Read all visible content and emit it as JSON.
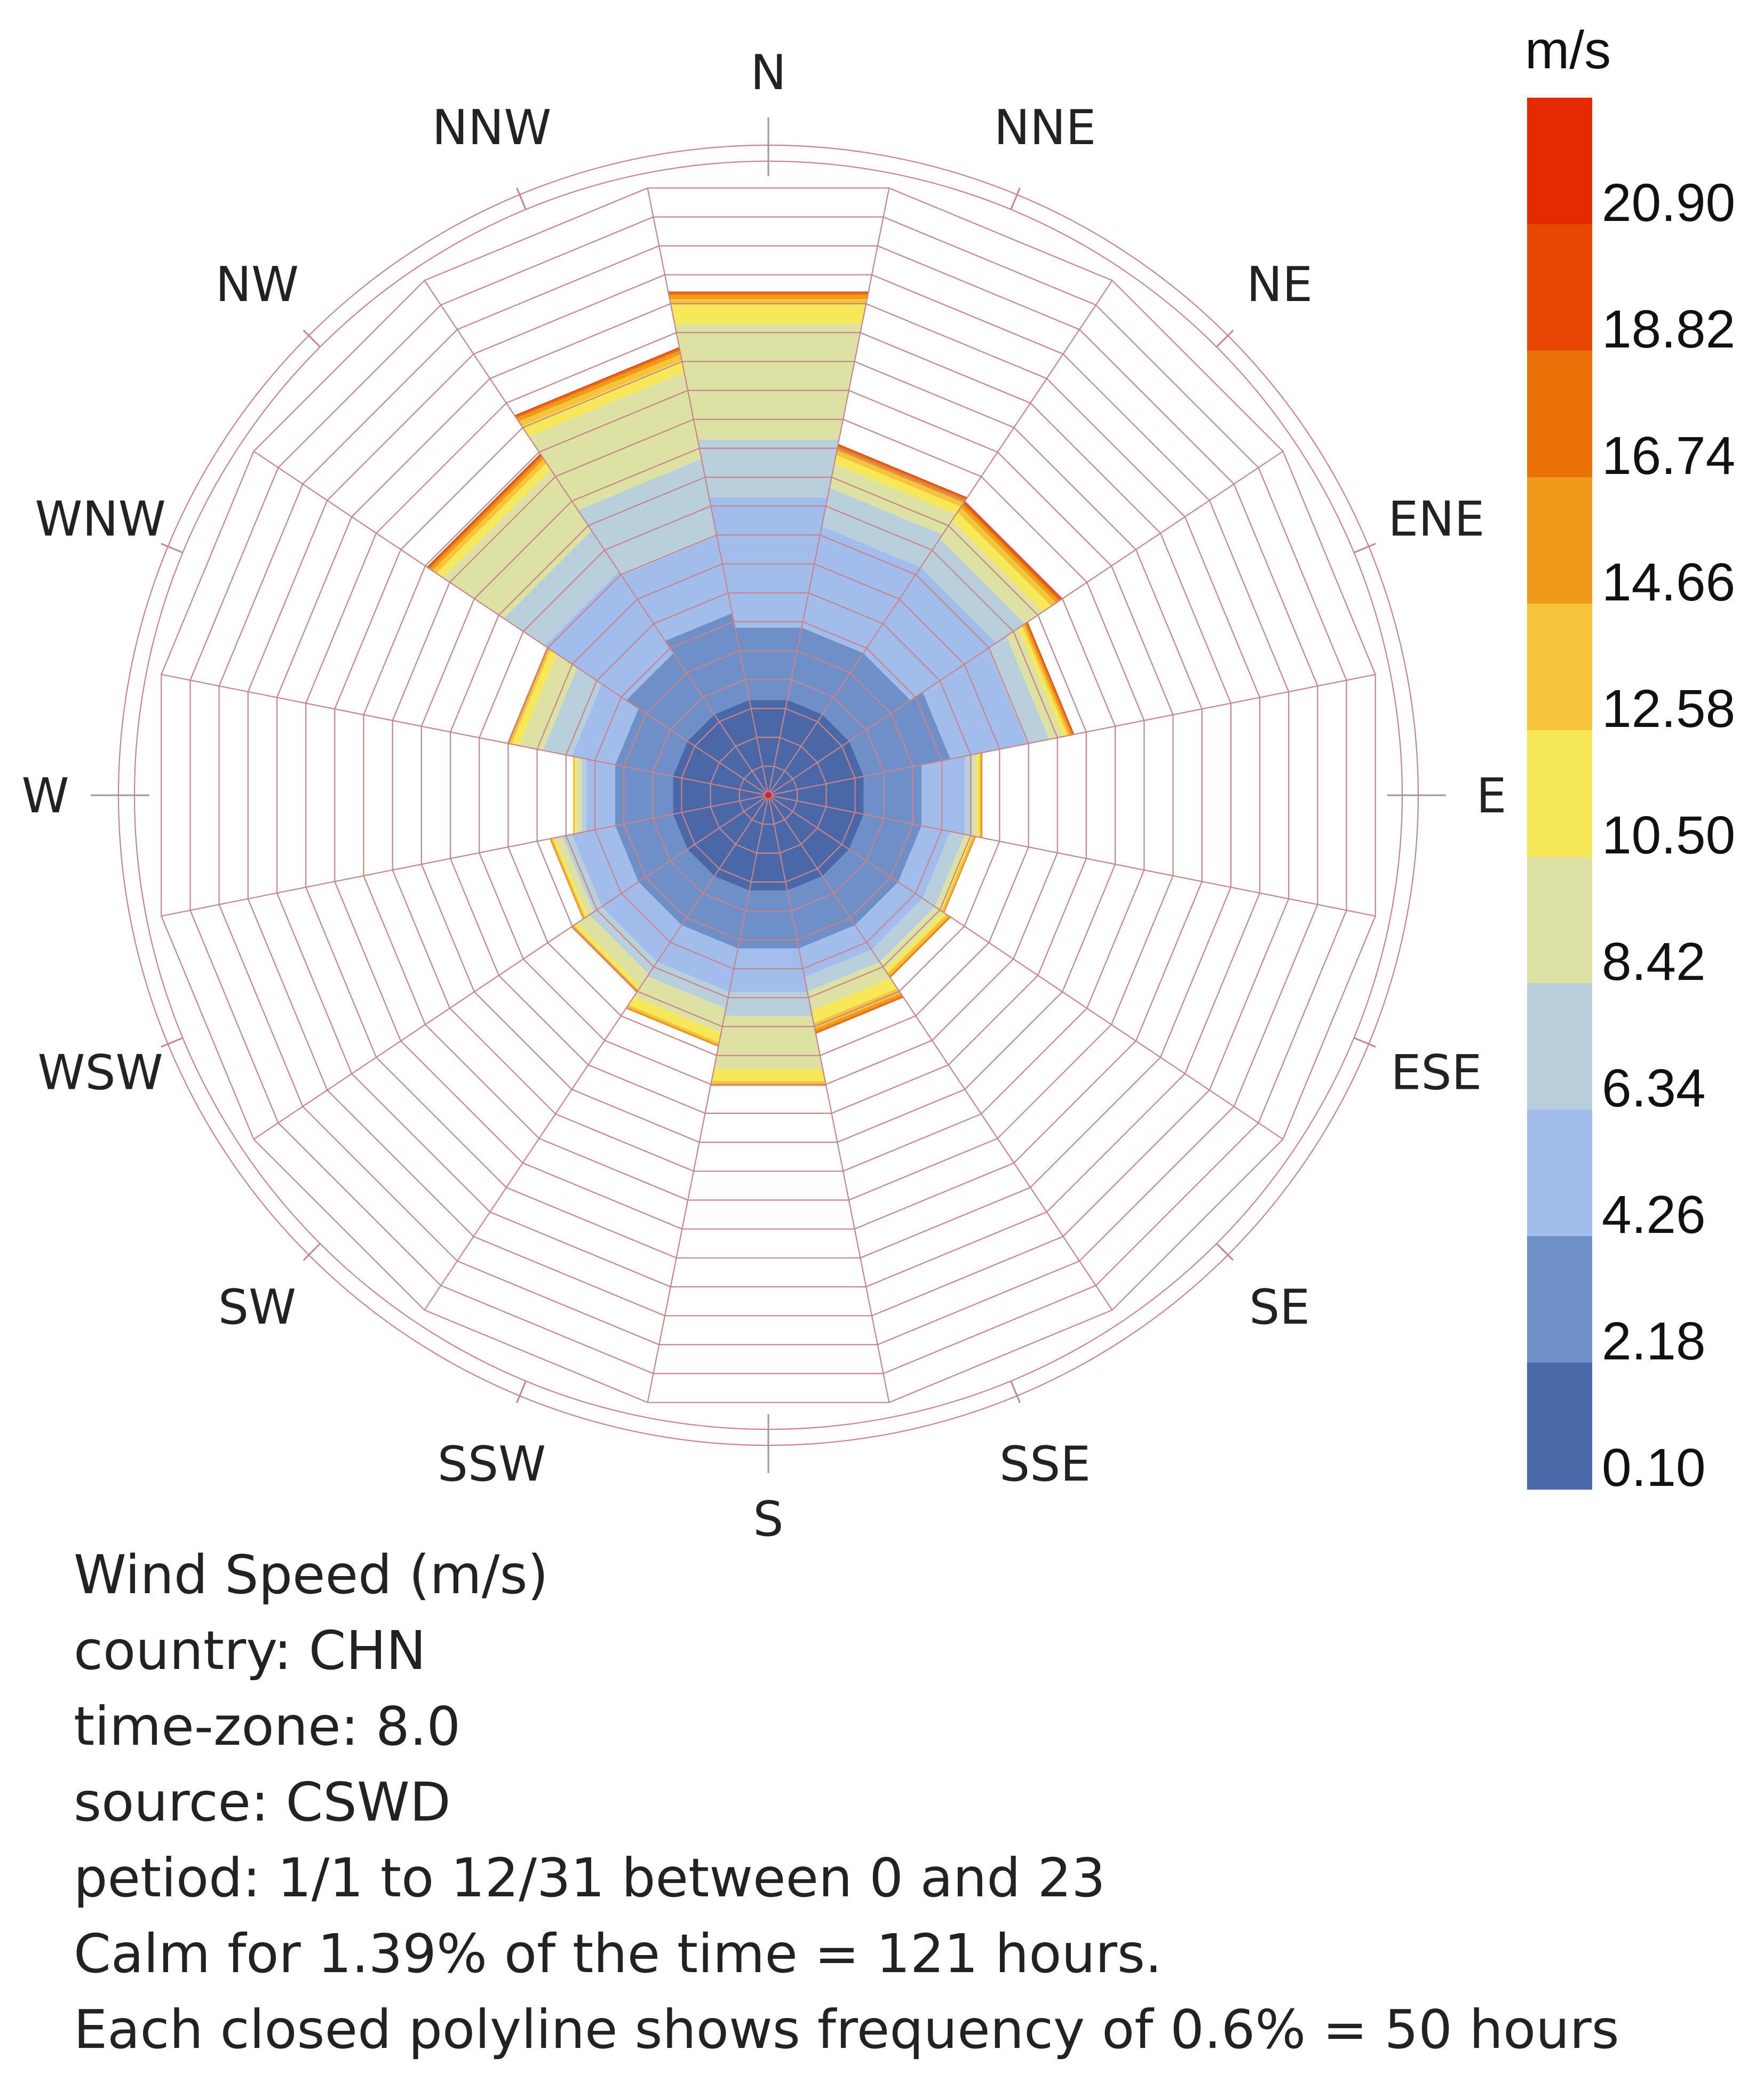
{
  "chart_data": {
    "type": "wind-rose",
    "directions": [
      "N",
      "NNE",
      "NE",
      "ENE",
      "E",
      "ESE",
      "SE",
      "SSE",
      "S",
      "SSW",
      "SW",
      "WSW",
      "W",
      "WNW",
      "NW",
      "NNW"
    ],
    "ring_step_percent": 0.6,
    "max_ring_percent": 12.6,
    "speed_unit": "m/s",
    "speed_bins": [
      0.1,
      2.18,
      4.26,
      6.34,
      8.42,
      10.5,
      12.58,
      14.66,
      16.74,
      18.82,
      20.9
    ],
    "bin_colors": [
      "#4a68a8",
      "#6f8fc8",
      "#a2bdec",
      "#b9d0dc",
      "#dde2a4",
      "#f7e85a",
      "#f5c43a",
      "#f09a1c",
      "#ea7008",
      "#e64705",
      "#e52a02"
    ],
    "frequency_percent": {
      "N": [
        1.98,
        1.5,
        2.7,
        1.2,
        2.4,
        0.4,
        0.12,
        0.08,
        0.04,
        0.02,
        0.01
      ],
      "NNE": [
        1.98,
        1.5,
        2.1,
        0.8,
        0.5,
        0.18,
        0.1,
        0.06,
        0.04,
        0.02,
        0.01
      ],
      "NE": [
        1.98,
        1.5,
        2.1,
        0.7,
        0.45,
        0.2,
        0.12,
        0.07,
        0.04,
        0.02,
        0.01
      ],
      "ENE": [
        1.98,
        1.8,
        1.6,
        0.45,
        0.3,
        0.08,
        0.05,
        0.04,
        0.03,
        0.01,
        0.01
      ],
      "E": [
        1.98,
        1.2,
        0.9,
        0.15,
        0.1,
        0.05,
        0.03,
        0.02,
        0.01,
        0.0,
        0.0
      ],
      "ESE": [
        1.98,
        1.2,
        0.6,
        0.3,
        0.1,
        0.06,
        0.04,
        0.02,
        0.01,
        0.0,
        0.0
      ],
      "SE": [
        1.98,
        1.2,
        0.6,
        0.3,
        0.2,
        0.08,
        0.06,
        0.03,
        0.02,
        0.0,
        0.0
      ],
      "SSE": [
        1.98,
        1.2,
        0.6,
        0.3,
        0.4,
        0.25,
        0.12,
        0.06,
        0.03,
        0.01,
        0.0
      ],
      "S": [
        1.98,
        1.2,
        0.9,
        0.5,
        1.1,
        0.25,
        0.06,
        0.03,
        0.01,
        0.0,
        0.0
      ],
      "SSW": [
        1.98,
        1.2,
        0.9,
        0.35,
        0.5,
        0.2,
        0.05,
        0.03,
        0.01,
        0.0,
        0.0
      ],
      "SW": [
        1.98,
        1.2,
        0.9,
        0.3,
        0.3,
        0.08,
        0.04,
        0.02,
        0.01,
        0.0,
        0.0
      ],
      "WSW": [
        1.98,
        1.2,
        0.9,
        0.2,
        0.15,
        0.05,
        0.03,
        0.02,
        0.01,
        0.0,
        0.0
      ],
      "W": [
        1.98,
        1.2,
        0.6,
        0.1,
        0.1,
        0.04,
        0.02,
        0.01,
        0.0,
        0.0,
        0.0
      ],
      "WNW": [
        1.98,
        1.2,
        0.9,
        0.6,
        0.5,
        0.15,
        0.05,
        0.03,
        0.01,
        0.0,
        0.0
      ],
      "NW": [
        1.98,
        1.5,
        2.0,
        1.0,
        1.5,
        0.15,
        0.1,
        0.06,
        0.04,
        0.02,
        0.01
      ],
      "NNW": [
        1.98,
        1.8,
        1.6,
        1.6,
        1.8,
        0.25,
        0.12,
        0.08,
        0.04,
        0.02,
        0.01
      ]
    },
    "legend": {
      "unit": "m/s",
      "tick_labels": [
        "20.90",
        "18.82",
        "16.74",
        "14.66",
        "12.58",
        "10.50",
        "8.42",
        "6.34",
        "4.26",
        "2.18",
        "0.10"
      ],
      "placement": "right"
    }
  },
  "notes": [
    "Wind Speed (m/s)",
    "country: CHN",
    "time-zone: 8.0",
    "source: CSWD",
    "petiod: 1/1 to 12/31 between 0 and 23",
    "Calm for 1.39% of the time = 121 hours.",
    "Each closed polyline shows frequency of 0.6% = 50 hours"
  ]
}
